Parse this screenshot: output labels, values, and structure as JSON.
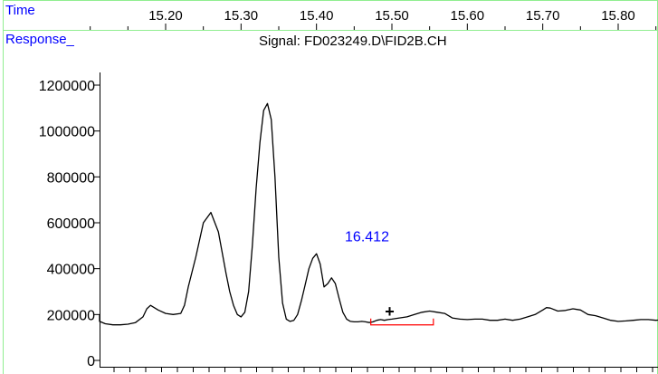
{
  "header": {
    "time_label": "Time",
    "response_label": "Response_",
    "signal_title": "Signal: FD023249.D\\FID2B.CH"
  },
  "colors": {
    "label_blue": "#0000ff",
    "frame_green": "#90ee90",
    "trace": "#000000",
    "baseline_marker": "#ff0000"
  },
  "chart_data": {
    "type": "line",
    "title": "Signal: FD023249.D\\FID2B.CH",
    "xlabel": "Time",
    "ylabel": "Response_",
    "x_ticks": [
      "15.20",
      "15.30",
      "15.40",
      "15.50",
      "15.60",
      "15.70",
      "15.80"
    ],
    "x_tick_values": [
      15.2,
      15.3,
      15.4,
      15.5,
      15.6,
      15.7,
      15.8
    ],
    "y_ticks": [
      "0",
      "200000",
      "400000",
      "600000",
      "800000",
      "1000000",
      "1200000"
    ],
    "y_tick_values": [
      0,
      200000,
      400000,
      600000,
      800000,
      1000000,
      1200000
    ],
    "xlim": [
      15.08,
      15.87
    ],
    "ylim": [
      -30000,
      1300000
    ],
    "grid": false,
    "series": [
      {
        "x": [
          15.08,
          15.09,
          15.1,
          15.11,
          15.12,
          15.13,
          15.14,
          15.15,
          15.16,
          15.17,
          15.175,
          15.18,
          15.19,
          15.2,
          15.21,
          15.22,
          15.225,
          15.23,
          15.24,
          15.25,
          15.26,
          15.27,
          15.28,
          15.285,
          15.29,
          15.295,
          15.3,
          15.305,
          15.31,
          15.315,
          15.32,
          15.325,
          15.33,
          15.335,
          15.34,
          15.345,
          15.35,
          15.355,
          15.36,
          15.365,
          15.37,
          15.375,
          15.38,
          15.385,
          15.39,
          15.395,
          15.4,
          15.405,
          15.41,
          15.415,
          15.42,
          15.425,
          15.43,
          15.435,
          15.44,
          15.445,
          15.45,
          15.455,
          15.46,
          15.465,
          15.47,
          15.475,
          15.48,
          15.485,
          15.49,
          15.495,
          15.5,
          15.51,
          15.52,
          15.53,
          15.54,
          15.55,
          15.56,
          15.57,
          15.58,
          15.59,
          15.6,
          15.61,
          15.62,
          15.63,
          15.64,
          15.65,
          15.66,
          15.67,
          15.68,
          15.69,
          15.7,
          15.705,
          15.71,
          15.72,
          15.73,
          15.74,
          15.75,
          15.76,
          15.77,
          15.78,
          15.79,
          15.8,
          15.81,
          15.82,
          15.83,
          15.84,
          15.85,
          15.86,
          15.87
        ],
        "y": [
          200000,
          195000,
          185000,
          170000,
          160000,
          155000,
          155000,
          158000,
          165000,
          190000,
          225000,
          240000,
          220000,
          205000,
          200000,
          205000,
          240000,
          320000,
          450000,
          600000,
          645000,
          560000,
          380000,
          300000,
          240000,
          200000,
          190000,
          210000,
          300000,
          500000,
          750000,
          950000,
          1090000,
          1120000,
          1050000,
          800000,
          450000,
          250000,
          180000,
          170000,
          175000,
          200000,
          260000,
          330000,
          400000,
          445000,
          465000,
          420000,
          320000,
          335000,
          360000,
          335000,
          270000,
          210000,
          180000,
          170000,
          168000,
          168000,
          170000,
          168000,
          165000,
          168000,
          175000,
          178000,
          175000,
          178000,
          180000,
          185000,
          190000,
          200000,
          210000,
          215000,
          210000,
          205000,
          185000,
          180000,
          178000,
          180000,
          180000,
          175000,
          175000,
          180000,
          175000,
          180000,
          190000,
          200000,
          220000,
          230000,
          228000,
          215000,
          218000,
          225000,
          220000,
          200000,
          195000,
          185000,
          175000,
          170000,
          172000,
          175000,
          178000,
          178000,
          175000,
          178000,
          178000
        ]
      }
    ],
    "annotations": [
      {
        "text": "16.412",
        "x": 15.467,
        "y": 520000
      },
      {
        "text": "+",
        "x": 15.497,
        "y": 190000
      }
    ],
    "integration_baseline": {
      "x_start": 15.472,
      "x_end": 15.555,
      "y": 155000
    }
  }
}
